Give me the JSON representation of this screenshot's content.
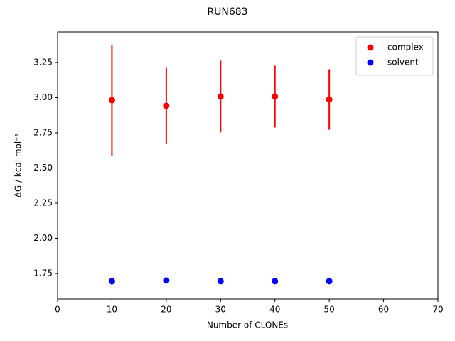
{
  "chart_data": {
    "type": "scatter",
    "title": "RUN683",
    "x_label": "Number of CLONEs",
    "y_label": "ΔG / kcal mol⁻¹",
    "x": [
      10,
      20,
      30,
      40,
      50
    ],
    "series": [
      {
        "name": "complex",
        "color": "#ff0000",
        "values": [
          2.982,
          2.942,
          3.008,
          3.008,
          2.987
        ],
        "errors": [
          0.395,
          0.27,
          0.255,
          0.22,
          0.215
        ]
      },
      {
        "name": "solvent",
        "color": "#0000ff",
        "values": [
          1.695,
          1.7,
          1.695,
          1.695,
          1.695
        ],
        "errors": [
          0.025,
          0.02,
          0.015,
          0.01,
          0.008
        ]
      }
    ],
    "xlim": [
      0,
      70
    ],
    "xticks": [
      0,
      10,
      20,
      30,
      40,
      50,
      60,
      70
    ],
    "ylim": [
      1.568,
      3.467
    ],
    "yticks": [
      1.75,
      {
        "value": 2.0,
        "label": "2.00"
      },
      2.25,
      {
        "value": 2.5,
        "label": "2.50"
      },
      2.75,
      {
        "value": 3.0,
        "label": "3.00"
      },
      3.25
    ],
    "legend": "upper right",
    "grid": false
  }
}
